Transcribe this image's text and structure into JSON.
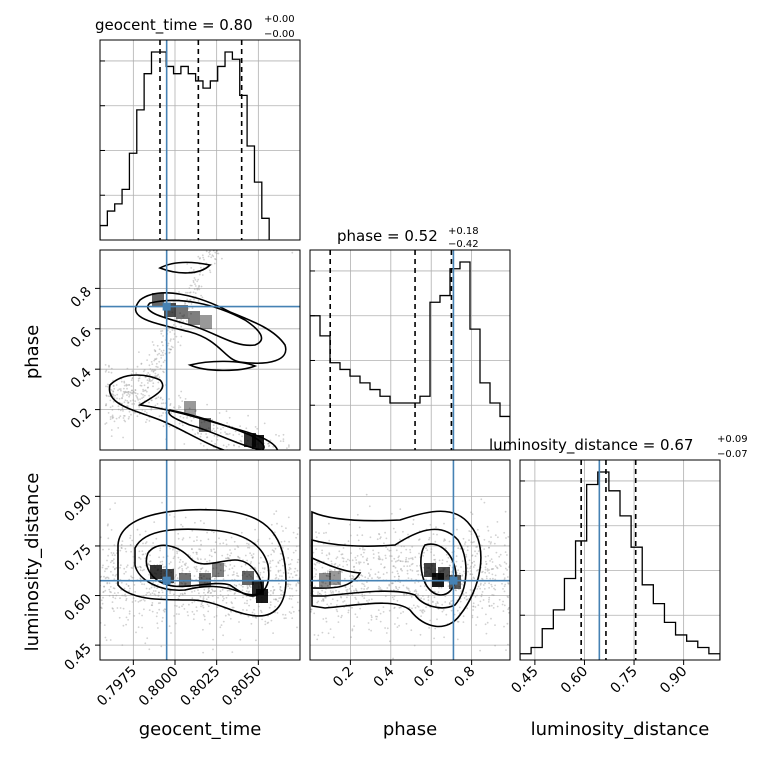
{
  "chart_data": {
    "type": "corner",
    "parameters": [
      "geocent_time",
      "phase",
      "luminosity_distance"
    ],
    "truths": {
      "geocent_time": 0.7995,
      "phase": 0.71,
      "luminosity_distance": 0.645
    },
    "ranges": {
      "geocent_time": [
        0.7955,
        0.8075
      ],
      "phase": [
        0.0,
        0.99
      ],
      "luminosity_distance": [
        0.405,
        1.01
      ]
    },
    "ticks": {
      "geocent_time": [
        "0.7975",
        "0.8000",
        "0.8025",
        "0.8050"
      ],
      "phase": [
        "0.2",
        "0.4",
        "0.6",
        "0.8"
      ],
      "luminosity_distance": [
        "0.45",
        "0.60",
        "0.75",
        "0.90"
      ]
    },
    "titles": [
      {
        "text": "geocent_time = 0.80",
        "sup": "+0.00",
        "sub": "−0.00"
      },
      {
        "text": "phase = 0.52",
        "sup": "+0.18",
        "sub": "−0.42"
      },
      {
        "text": "luminosity_distance = 0.67",
        "sup": "+0.09",
        "sub": "−0.07"
      }
    ],
    "quantiles": {
      "geocent_time": [
        0.7991,
        0.8014,
        0.804
      ],
      "phase": [
        0.1,
        0.52,
        0.7
      ],
      "luminosity_distance": [
        0.59,
        0.665,
        0.755
      ]
    },
    "histograms": {
      "geocent_time": {
        "bins": [
          0.7955,
          0.80565
        ],
        "counts": [
          2,
          4,
          5,
          7,
          12,
          18,
          23,
          26,
          26,
          24,
          23,
          24,
          23,
          22,
          21,
          22,
          24,
          26,
          25,
          20,
          13,
          8,
          3
        ]
      },
      "phase": {
        "bins": [
          0.0,
          0.99
        ],
        "counts": [
          20,
          17,
          13,
          12,
          11,
          10,
          9,
          8,
          7,
          7,
          7,
          8,
          22,
          23,
          27,
          28,
          18,
          10,
          7,
          5
        ]
      },
      "luminosity_distance": {
        "bins": [
          0.405,
          1.01
        ],
        "counts": [
          1,
          2,
          5,
          8,
          13,
          19,
          28,
          30,
          27,
          23,
          18,
          12,
          9,
          6,
          4,
          3,
          2,
          1
        ]
      }
    },
    "grid": true
  }
}
